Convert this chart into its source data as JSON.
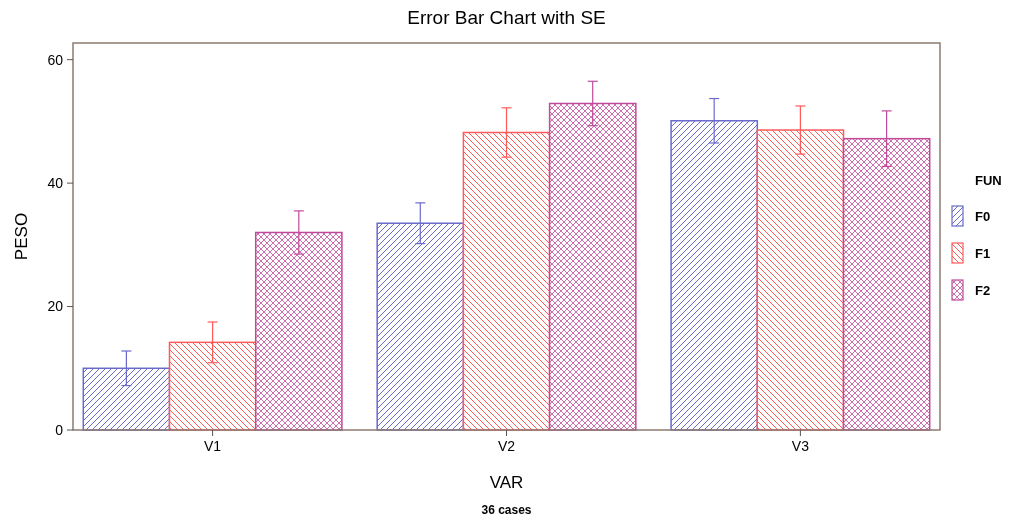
{
  "chart_data": {
    "type": "bar",
    "title": "Error Bar Chart with SE",
    "xlabel": "VAR",
    "ylabel": "PESO",
    "legend_title": "FUN",
    "categories": [
      "V1",
      "V2",
      "V3"
    ],
    "series": [
      {
        "name": "F0",
        "color": "#6a6acc",
        "values": [
          10.0,
          33.5,
          50.1
        ],
        "errors": [
          2.8,
          3.3,
          3.6
        ]
      },
      {
        "name": "F1",
        "color": "#ff5a5a",
        "values": [
          14.2,
          48.2,
          48.6
        ],
        "errors": [
          3.3,
          4.0,
          3.9
        ]
      },
      {
        "name": "F2",
        "color": "#c04a9a",
        "values": [
          32.0,
          52.9,
          47.2
        ],
        "errors": [
          3.5,
          3.6,
          4.5
        ]
      }
    ],
    "ylim": [
      0,
      62.7
    ],
    "yticks": [
      0,
      20,
      40,
      60
    ],
    "grid": false,
    "legend": "right",
    "annotations": [
      "36 cases"
    ]
  }
}
